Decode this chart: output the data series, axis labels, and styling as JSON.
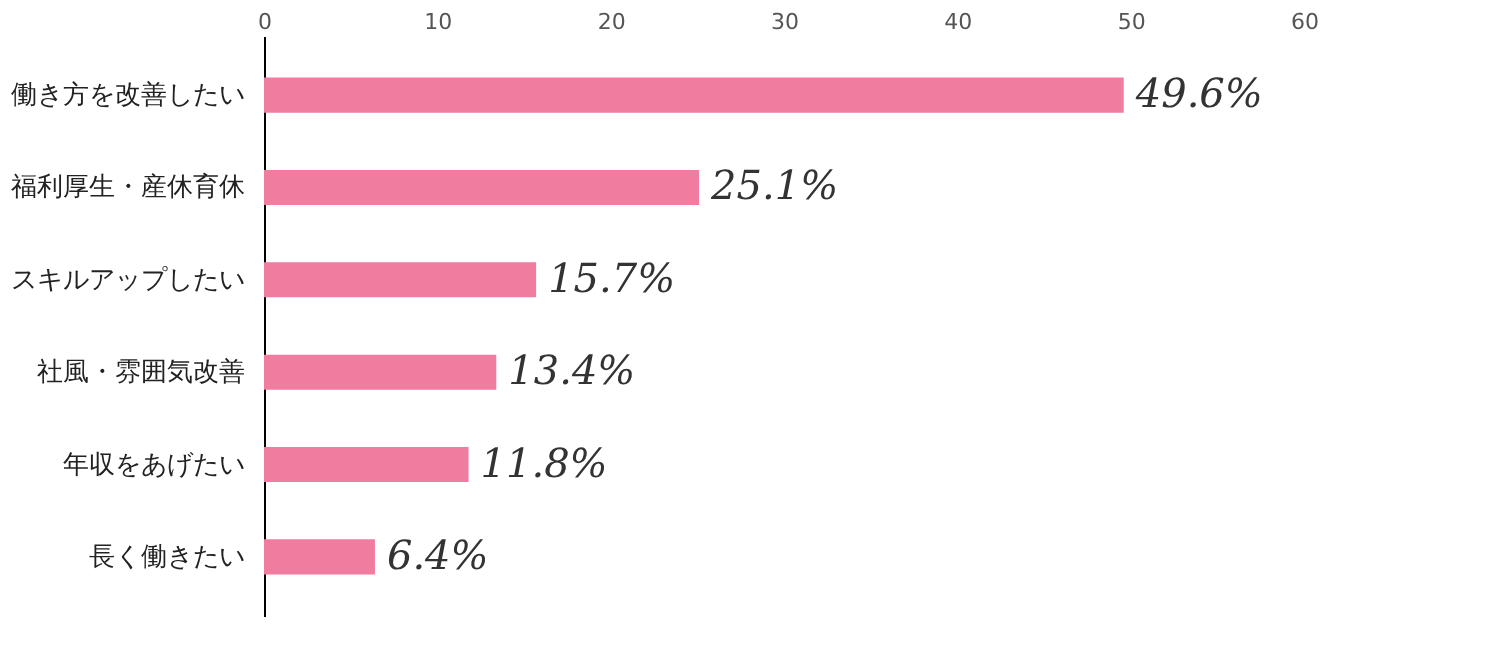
{
  "chart_data": {
    "type": "bar",
    "orientation": "horizontal",
    "categories": [
      "働き方を改善したい",
      "福利厚生・産休育休",
      "スキルアップしたい",
      "社風・雰囲気改善",
      "年収をあげたい",
      "長く働きたい"
    ],
    "values": [
      49.6,
      25.1,
      15.7,
      13.4,
      11.8,
      6.4
    ],
    "value_labels": [
      "49.6%",
      "25.1%",
      "15.7%",
      "13.4%",
      "11.8%",
      "6.4%"
    ],
    "color": "#f07ca0",
    "xlim": [
      0,
      60
    ],
    "xticks": [
      0,
      10,
      20,
      30,
      40,
      50,
      60
    ],
    "grid": false
  }
}
